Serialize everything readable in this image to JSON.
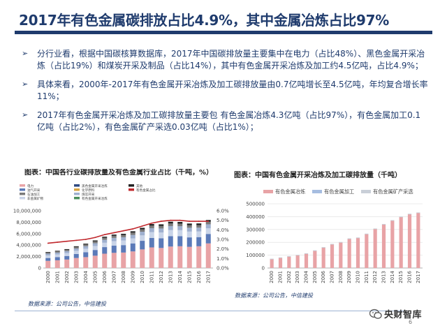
{
  "title": "2017年有色金属碳排放占比4.9%，其中金属冶炼占比97%",
  "bullets": [
    "分行业看，根据中国碳核算数据库，2017年中国碳排放量主要集中在电力（占比48%）、黑色金属开采冶炼（占比19%）和煤炭开采及制品（占比14%），其中有色金属开采冶炼及加工约4.5亿吨，占比4.9%；",
    "具体来看，2000年-2017年有色金属开采冶炼及加工碳排放量由0.7亿吨增长至4.5亿吨，年均复合增长率11%；",
    "2017年有色金属开采冶炼及加工碳排放量主要包   有色金属冶炼4.3亿吨（占比97%），有色金属加工0.1亿吨（占比2%），有色金属矿产采选0.03亿吨（占比1%）；"
  ],
  "bullet_mark": "➢",
  "left_chart": {
    "title": "图表：中国各行业碳排放量及有色金属行业占比（千吨，%）",
    "source": "数据来源：公司公告，中信建投"
  },
  "right_chart": {
    "title": "图表：中国有色金属开采冶炼及加工碳排放量（千吨）",
    "source": "数据来源：公司公告，中信建投"
  },
  "logo": {
    "text": "央财智库",
    "icon": "wechat-icon"
  },
  "page_number": "6",
  "colors": {
    "title": "#1f3b6d",
    "bar_pink": "#e8a3a6",
    "bar_blue": "#5b7ab8",
    "line_red": "#c0282d",
    "text_blue": "#1f3b6d"
  },
  "chart_data": [
    {
      "type": "bar",
      "stacked": true,
      "categories": [
        "2000",
        "2001",
        "2002",
        "2003",
        "2004",
        "2005",
        "2006",
        "2007",
        "2008",
        "2009",
        "2010",
        "2011",
        "2012",
        "2013",
        "2014",
        "2015",
        "2016",
        "2017"
      ],
      "legend": [
        "电力",
        "油气开采",
        "石油加工",
        "非金属矿物",
        "黑色金属开采冶炼",
        "有色金属开采冶炼",
        "煤炭开采",
        "化学原料",
        "其他",
        "有色金属占比"
      ],
      "legend_entries": [
        {
          "name": "电力",
          "color": "#e8a3a6"
        },
        {
          "name": "油气开采",
          "color": "#5b7ab8"
        },
        {
          "name": "石油加工",
          "color": "#7a7a7a"
        },
        {
          "name": "非金属矿物",
          "color": "#c9d4e8"
        },
        {
          "name": "黑色金属开采冶炼",
          "color": "#2e4a82"
        },
        {
          "name": "化学原料",
          "color": "#d9a441"
        },
        {
          "name": "煤炭开采",
          "color": "#9fb0cf"
        },
        {
          "name": "有色金属开采冶炼",
          "color": "#4b8f5b"
        },
        {
          "name": "其他",
          "color": "#222222"
        },
        {
          "name": "有色金属占比",
          "color": "#c0282d"
        }
      ],
      "series": [
        {
          "name": "电力",
          "color": "#e8a3a6",
          "values": [
            1250,
            1350,
            1480,
            1750,
            1900,
            2150,
            2500,
            2650,
            2700,
            2900,
            3250,
            3600,
            3500,
            3750,
            3800,
            3700,
            3800,
            4300
          ]
        },
        {
          "name": "黑色金属开采冶炼",
          "color": "#5b7ab8",
          "values": [
            500,
            550,
            620,
            700,
            850,
            1000,
            1150,
            1250,
            1300,
            1400,
            1500,
            1650,
            1700,
            1800,
            1750,
            1650,
            1600,
            1650
          ]
        },
        {
          "name": "非金属矿物",
          "color": "#c9d4e8",
          "values": [
            450,
            470,
            500,
            560,
            620,
            700,
            760,
            800,
            820,
            880,
            950,
            1030,
            1020,
            1080,
            1060,
            1010,
            990,
            1000
          ]
        },
        {
          "name": "煤炭开采",
          "color": "#9fb0cf",
          "values": [
            300,
            320,
            350,
            400,
            440,
            480,
            520,
            560,
            560,
            600,
            640,
            680,
            680,
            700,
            690,
            670,
            660,
            680
          ]
        },
        {
          "name": "其他",
          "color": "#7a7a7a",
          "values": [
            200,
            210,
            230,
            260,
            290,
            320,
            350,
            370,
            380,
            400,
            420,
            440,
            440,
            460,
            450,
            440,
            440,
            450
          ]
        },
        {
          "name": "顶部",
          "color": "#222222",
          "values": [
            100,
            110,
            120,
            130,
            150,
            170,
            190,
            210,
            220,
            240,
            260,
            280,
            290,
            300,
            300,
            300,
            300,
            310
          ]
        }
      ],
      "line": {
        "name": "有色金属占比",
        "color": "#c0282d",
        "values": [
          2.6,
          2.7,
          2.8,
          2.9,
          3.0,
          3.2,
          3.5,
          3.7,
          3.9,
          4.1,
          4.4,
          4.7,
          4.9,
          5.0,
          5.0,
          4.9,
          4.9,
          4.9
        ]
      },
      "y_ticks": [
        "0",
        "2,000,000",
        "4,000,000",
        "6,000,000",
        "8,000,000",
        "10,000,000"
      ],
      "y2_ticks": [
        "0.0%",
        "1.0%",
        "2.0%",
        "3.0%",
        "4.0%",
        "5.0%",
        "6.0%"
      ],
      "ylim": [
        0,
        10000
      ],
      "y2lim": [
        0,
        6
      ],
      "grid": false
    },
    {
      "type": "bar",
      "categories": [
        "2000",
        "2001",
        "2002",
        "2003",
        "2004",
        "2005",
        "2006",
        "2007",
        "2008",
        "2009",
        "2010",
        "2011",
        "2012",
        "2013",
        "2014",
        "2015",
        "2016",
        "2017"
      ],
      "legend": [
        "有色金属冶炼",
        "有色金属加工",
        "有色金属矿产采选"
      ],
      "series": [
        {
          "name": "有色金属冶炼",
          "color": "#e8a3a6",
          "values": [
            70000,
            80000,
            90000,
            100000,
            112000,
            135000,
            160000,
            185000,
            200000,
            228000,
            235000,
            265000,
            305000,
            340000,
            370000,
            398000,
            420000,
            430000
          ]
        }
      ],
      "y_ticks": [
        "0",
        "50000",
        "100000",
        "150000",
        "200000",
        "250000",
        "300000",
        "350000",
        "400000",
        "450000",
        "500000"
      ],
      "ylim": [
        0,
        500000
      ],
      "grid": true
    }
  ]
}
